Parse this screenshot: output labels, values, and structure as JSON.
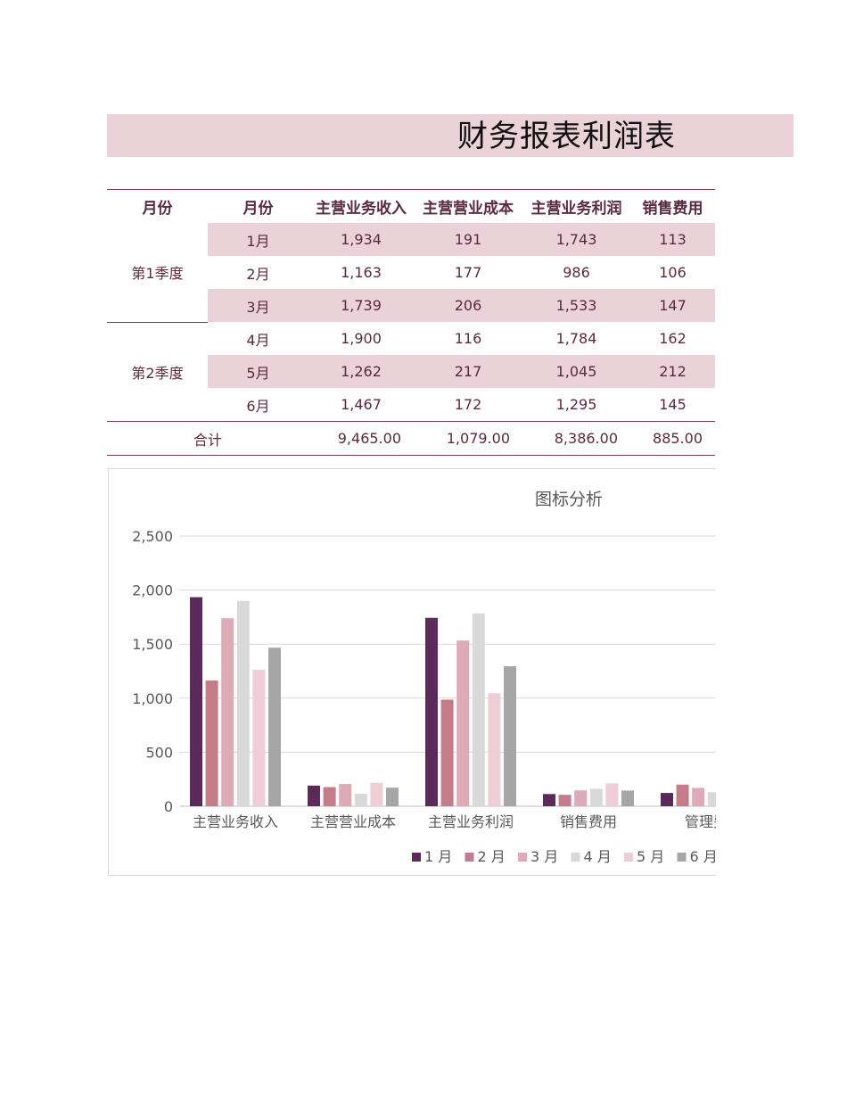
{
  "title": "财务报表利润表",
  "table": {
    "headers": [
      "月份",
      "月份",
      "主营业务收入",
      "主营营业成本",
      "主营业务利润",
      "销售费用"
    ],
    "quarters": [
      {
        "label": "第1季度",
        "rows": [
          {
            "month": "1月",
            "values": [
              "1,934",
              "191",
              "1,743",
              "113"
            ]
          },
          {
            "month": "2月",
            "values": [
              "1,163",
              "177",
              "986",
              "106"
            ]
          },
          {
            "month": "3月",
            "values": [
              "1,739",
              "206",
              "1,533",
              "147"
            ]
          }
        ]
      },
      {
        "label": "第2季度",
        "rows": [
          {
            "month": "4月",
            "values": [
              "1,900",
              "116",
              "1,784",
              "162"
            ]
          },
          {
            "month": "5月",
            "values": [
              "1,262",
              "217",
              "1,045",
              "212"
            ]
          },
          {
            "month": "6月",
            "values": [
              "1,467",
              "172",
              "1,295",
              "145"
            ]
          }
        ]
      }
    ],
    "total_label": "合计",
    "totals": [
      "9,465.00",
      "1,079.00",
      "8,386.00",
      "885.00"
    ]
  },
  "chart_data": {
    "type": "bar",
    "title": "图标分析",
    "categories": [
      "主营业务收入",
      "主营营业成本",
      "主营业务利润",
      "销售费用",
      "管理费"
    ],
    "series": [
      {
        "name": "1 月",
        "color": "#5c2a5a",
        "values": [
          1934,
          191,
          1743,
          113,
          123
        ]
      },
      {
        "name": "2 月",
        "color": "#c47b8a",
        "values": [
          1163,
          177,
          986,
          106,
          200
        ]
      },
      {
        "name": "3 月",
        "color": "#ddaab8",
        "values": [
          1739,
          206,
          1533,
          147,
          170
        ]
      },
      {
        "name": "4 月",
        "color": "#d9d9d9",
        "values": [
          1900,
          116,
          1784,
          162,
          130
        ]
      },
      {
        "name": "5 月",
        "color": "#efcdd6",
        "values": [
          1262,
          217,
          1045,
          212,
          0
        ]
      },
      {
        "name": "6 月",
        "color": "#a6a6a6",
        "values": [
          1467,
          172,
          1295,
          145,
          0
        ]
      }
    ],
    "yticks": [
      "0",
      "500",
      "1,000",
      "1,500",
      "2,000",
      "2,500"
    ],
    "ylim": [
      0,
      2500
    ],
    "grid": true,
    "legend": "bottom"
  }
}
